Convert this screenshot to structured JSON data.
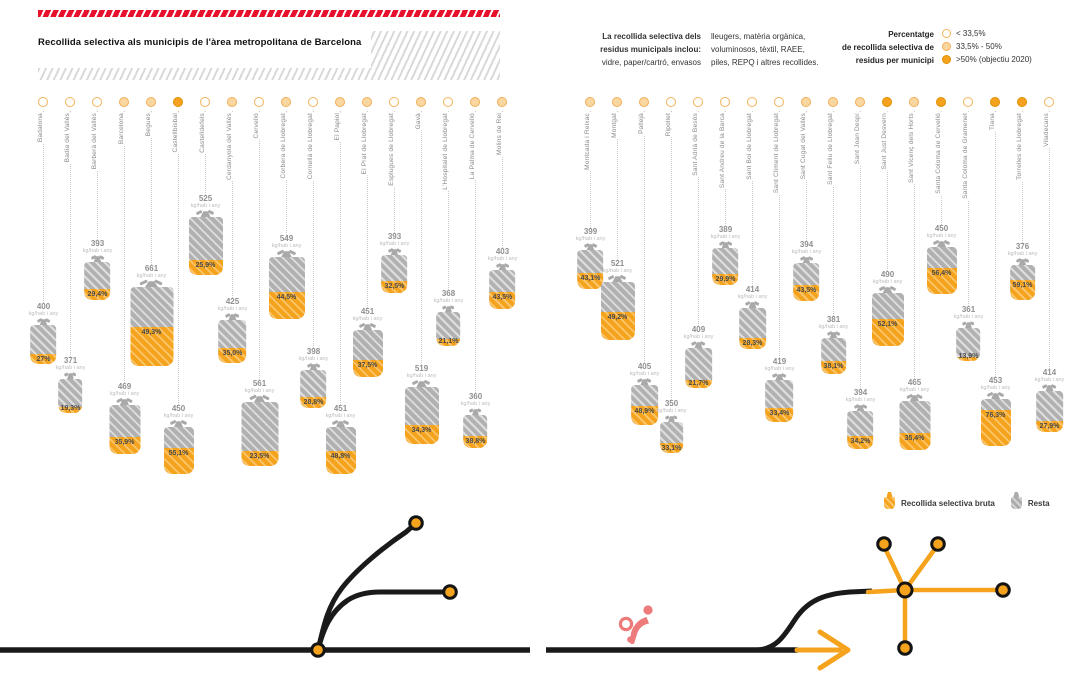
{
  "header": {
    "title": "Recollida selectiva als municipis de l'àrea metropolitana de Barcelona"
  },
  "intro": {
    "col1_bold": "La recollida selectiva dels\nresidus municipals inclou:",
    "col1_regular": "vidre, paper/cartró, envasos",
    "col2": "lleugers, matèria orgànica,\nvoluminosos, tèxtil, RAEE,\npiles, REPQ i altres recollides."
  },
  "legend": {
    "title": "Percentatge\nde recollida selectiva de\nresidus per municipi",
    "items": [
      {
        "level": "low",
        "label": "< 33,5%"
      },
      {
        "level": "mid",
        "label": "33,5% - 50%"
      },
      {
        "level": "high",
        "label": ">50% (objectiu 2020)"
      }
    ]
  },
  "unit_label": "kg/hab i any",
  "bottom_legend": [
    {
      "key": "selectiva",
      "label": "Recollida selectiva bruta",
      "color": "#F5A31C"
    },
    {
      "key": "resta",
      "label": "Resta",
      "color": "#ABABAB"
    }
  ],
  "colors": {
    "orange": "#F5A31C",
    "light_orange": "#FAD7A1",
    "red": "#E8112D",
    "bag_gray": "#B1B1B1",
    "pink": "#ED7B7B",
    "black": "#1A1A1A"
  },
  "chart_data": {
    "type": "pictogram-bar",
    "title": "Recollida selectiva als municipis de l'àrea metropolitana de Barcelona",
    "encoding": "bag size = kg de residus per habitant i any; orange fill = % de recollida selectiva bruta",
    "unit": "kg/hab i any",
    "thresholds": {
      "low": "< 33,5%",
      "mid": "33,5% - 50%",
      "high": ">50% (objectiu 2020)"
    },
    "legend_position": "top-right",
    "panels": [
      {
        "municipalities": [
          {
            "name": "Badalona",
            "kg": 400,
            "pct": "27%",
            "pct_value": 27.0,
            "drop": 208
          },
          {
            "name": "Badia del Vallès",
            "kg": 371,
            "pct": "19,3%",
            "pct_value": 19.3,
            "drop": 262
          },
          {
            "name": "Barberà del Vallès",
            "kg": 393,
            "pct": "29,4%",
            "pct_value": 29.4,
            "drop": 145
          },
          {
            "name": "Barcelona",
            "kg": 469,
            "pct": "35,9%",
            "pct_value": 35.9,
            "drop": 288
          },
          {
            "name": "Begues",
            "kg": 661,
            "pct": "49,3%",
            "pct_value": 49.3,
            "drop": 170
          },
          {
            "name": "Castellbisbal",
            "kg": 450,
            "pct": "55,1%",
            "pct_value": 55.1,
            "drop": 310
          },
          {
            "name": "Castelldefels",
            "kg": 525,
            "pct": "25,9%",
            "pct_value": 25.9,
            "drop": 100
          },
          {
            "name": "Cerdanyola del Vallès",
            "kg": 425,
            "pct": "35,0%",
            "pct_value": 35.0,
            "drop": 203
          },
          {
            "name": "Cervelló",
            "kg": 561,
            "pct": "23,5%",
            "pct_value": 23.5,
            "drop": 285
          },
          {
            "name": "Corbera de Llobregat",
            "kg": 549,
            "pct": "44,5%",
            "pct_value": 44.5,
            "drop": 140
          },
          {
            "name": "Cornellà de Llobregat",
            "kg": 398,
            "pct": "28,8%",
            "pct_value": 28.8,
            "drop": 253
          },
          {
            "name": "El Papiol",
            "kg": 451,
            "pct": "48,8%",
            "pct_value": 48.8,
            "drop": 310
          },
          {
            "name": "El Prat de Llobregat",
            "kg": 451,
            "pct": "37,5%",
            "pct_value": 37.5,
            "drop": 213
          },
          {
            "name": "Esplugues de Llobregat",
            "kg": 393,
            "pct": "32,5%",
            "pct_value": 32.5,
            "drop": 138
          },
          {
            "name": "Gavà",
            "kg": 519,
            "pct": "34,3%",
            "pct_value": 34.3,
            "drop": 270
          },
          {
            "name": "L'Hospitalet de Llobregat",
            "kg": 368,
            "pct": "21,1%",
            "pct_value": 21.1,
            "drop": 195
          },
          {
            "name": "La Palma de Cervelló",
            "kg": 360,
            "pct": "38,8%",
            "pct_value": 38.8,
            "drop": 298
          },
          {
            "name": "Molins de Rei",
            "kg": 403,
            "pct": "43,5%",
            "pct_value": 43.5,
            "drop": 153
          }
        ]
      },
      {
        "municipalities": [
          {
            "name": "Montcada i Reixac",
            "kg": 399,
            "pct": "43,1%",
            "pct_value": 43.1,
            "drop": 133
          },
          {
            "name": "Montgat",
            "kg": 521,
            "pct": "49,2%",
            "pct_value": 49.2,
            "drop": 165
          },
          {
            "name": "Pallejà",
            "kg": 405,
            "pct": "48,9%",
            "pct_value": 48.9,
            "drop": 268
          },
          {
            "name": "Ripollet",
            "kg": 350,
            "pct": "33,1%",
            "pct_value": 33.1,
            "drop": 305
          },
          {
            "name": "Sant Adrià de Besòs",
            "kg": 409,
            "pct": "21,7%",
            "pct_value": 21.7,
            "drop": 231
          },
          {
            "name": "Sant Andreu de la Barca",
            "kg": 389,
            "pct": "29,9%",
            "pct_value": 29.9,
            "drop": 131
          },
          {
            "name": "Sant Boi de Llobregat",
            "kg": 414,
            "pct": "28,3%",
            "pct_value": 28.3,
            "drop": 191
          },
          {
            "name": "Sant Climent de Llobregat",
            "kg": 419,
            "pct": "33,4%",
            "pct_value": 33.4,
            "drop": 263
          },
          {
            "name": "Sant Cugat del Vallès",
            "kg": 394,
            "pct": "43,5%",
            "pct_value": 43.5,
            "drop": 146
          },
          {
            "name": "Sant Feliu de Llobregat",
            "kg": 381,
            "pct": "38,1%",
            "pct_value": 38.1,
            "drop": 221
          },
          {
            "name": "Sant Joan Despí",
            "kg": 394,
            "pct": "34,2%",
            "pct_value": 34.2,
            "drop": 294
          },
          {
            "name": "Sant Just Desvern",
            "kg": 490,
            "pct": "52,1%",
            "pct_value": 52.1,
            "drop": 176
          },
          {
            "name": "Sant Vicenç dels Horts",
            "kg": 465,
            "pct": "35,4%",
            "pct_value": 35.4,
            "drop": 284
          },
          {
            "name": "Santa Coloma de Cervelló",
            "kg": 450,
            "pct": "56,4%",
            "pct_value": 56.4,
            "drop": 130
          },
          {
            "name": "Santa Coloma de Gramenet",
            "kg": 361,
            "pct": "13,9%",
            "pct_value": 13.9,
            "drop": 211
          },
          {
            "name": "Tiana",
            "kg": 453,
            "pct": "76,3%",
            "pct_value": 76.3,
            "drop": 282
          },
          {
            "name": "Torrelles de Llobregat",
            "kg": 376,
            "pct": "59,1%",
            "pct_value": 59.1,
            "drop": 148
          },
          {
            "name": "Viladecans",
            "kg": 414,
            "pct": "27,9%",
            "pct_value": 27.9,
            "drop": 274
          }
        ]
      }
    ]
  }
}
